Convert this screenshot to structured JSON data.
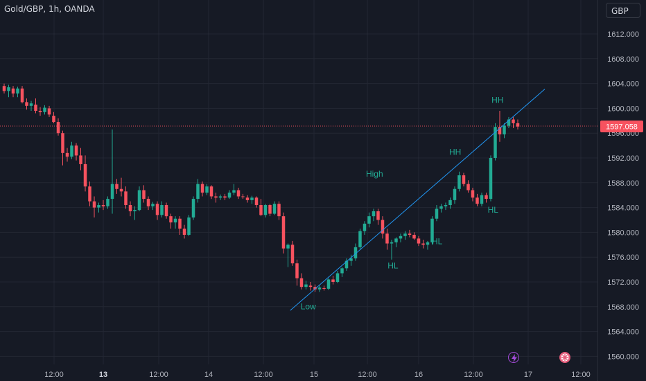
{
  "header": {
    "symbol": "Gold/GBP, 1h, OANDA",
    "currency_button": "GBP"
  },
  "price_axis": {
    "ticks": [
      "1612.000",
      "1608.000",
      "1604.000",
      "1600.000",
      "1596.000",
      "1592.000",
      "1588.000",
      "1584.000",
      "1580.000",
      "1576.000",
      "1572.000",
      "1568.000",
      "1564.000",
      "1560.000"
    ]
  },
  "time_axis": {
    "labels": [
      "12:00",
      "13",
      "12:00",
      "14",
      "12:00",
      "15",
      "12:00",
      "16",
      "12:00",
      "17",
      "12:00"
    ],
    "bold_labels": [
      "13"
    ]
  },
  "last_price": {
    "label": "1597.058",
    "value": 1597.058,
    "color": "#f7525f"
  },
  "colors": {
    "up": "#22ab94",
    "down": "#f7525f",
    "trendline": "#2196f3",
    "annotation": "#22ab94",
    "background": "#161a25",
    "grid": "#232733",
    "axis_text": "#b2b5be"
  },
  "annotations": [
    "Low",
    "High",
    "HL",
    "HL",
    "HH",
    "HH",
    "HL"
  ],
  "events": [
    {
      "icon": "lightning-icon",
      "color": "#a54bdb"
    },
    {
      "icon": "flag-icon",
      "color": "#e55b7a"
    }
  ],
  "chart_data": {
    "type": "candlestick",
    "instrument": "Gold/GBP",
    "timeframe": "1h",
    "source": "OANDA",
    "ylim": [
      1558.8,
      1618.2
    ],
    "y_ticks": [
      1560,
      1564,
      1568,
      1572,
      1576,
      1580,
      1584,
      1588,
      1592,
      1596,
      1600,
      1604,
      1608,
      1612
    ],
    "x_tick_labels": [
      "12:00",
      "13",
      "12:00",
      "14",
      "12:00",
      "15",
      "12:00",
      "16",
      "12:00",
      "17",
      "12:00"
    ],
    "ohlc": [
      [
        1603.6,
        1604.0,
        1602.4,
        1602.8
      ],
      [
        1602.8,
        1603.8,
        1601.8,
        1603.4
      ],
      [
        1603.2,
        1603.6,
        1601.8,
        1602.4
      ],
      [
        1602.4,
        1603.5,
        1601.8,
        1603.2
      ],
      [
        1603.2,
        1603.6,
        1600.8,
        1601.0
      ],
      [
        1601.0,
        1601.6,
        1599.8,
        1600.4
      ],
      [
        1600.4,
        1601.2,
        1599.6,
        1600.8
      ],
      [
        1600.6,
        1601.6,
        1599.2,
        1599.6
      ],
      [
        1599.6,
        1600.2,
        1598.8,
        1599.4
      ],
      [
        1599.4,
        1600.5,
        1599.0,
        1600.1
      ],
      [
        1600.0,
        1600.4,
        1598.6,
        1599.0
      ],
      [
        1598.8,
        1599.4,
        1597.6,
        1597.8
      ],
      [
        1597.8,
        1598.4,
        1595.6,
        1596.0
      ],
      [
        1596.0,
        1596.4,
        1590.8,
        1592.8
      ],
      [
        1592.8,
        1593.6,
        1591.4,
        1592.2
      ],
      [
        1592.2,
        1594.6,
        1591.8,
        1594.0
      ],
      [
        1594.0,
        1594.4,
        1591.6,
        1592.4
      ],
      [
        1592.4,
        1593.6,
        1590.0,
        1591.0
      ],
      [
        1591.0,
        1592.4,
        1586.6,
        1587.4
      ],
      [
        1587.4,
        1588.2,
        1584.2,
        1585.0
      ],
      [
        1585.0,
        1585.8,
        1582.4,
        1584.0
      ],
      [
        1584.0,
        1584.8,
        1583.2,
        1584.4
      ],
      [
        1584.4,
        1585.2,
        1583.6,
        1584.2
      ],
      [
        1584.2,
        1585.8,
        1583.8,
        1585.4
      ],
      [
        1585.4,
        1596.6,
        1583.0,
        1587.8
      ],
      [
        1587.8,
        1588.6,
        1586.2,
        1587.0
      ],
      [
        1587.0,
        1588.8,
        1585.8,
        1586.6
      ],
      [
        1586.6,
        1587.4,
        1583.8,
        1584.4
      ],
      [
        1584.4,
        1585.0,
        1582.6,
        1583.4
      ],
      [
        1583.4,
        1584.2,
        1582.0,
        1583.6
      ],
      [
        1583.6,
        1587.4,
        1583.4,
        1586.8
      ],
      [
        1586.8,
        1587.6,
        1584.8,
        1585.4
      ],
      [
        1585.4,
        1585.8,
        1583.6,
        1584.2
      ],
      [
        1584.2,
        1584.9,
        1583.6,
        1584.6
      ],
      [
        1584.6,
        1585.0,
        1582.0,
        1582.8
      ],
      [
        1582.8,
        1585.0,
        1582.4,
        1584.4
      ],
      [
        1584.4,
        1584.8,
        1582.2,
        1582.6
      ],
      [
        1582.6,
        1583.0,
        1580.6,
        1581.6
      ],
      [
        1581.6,
        1582.6,
        1580.6,
        1582.2
      ],
      [
        1582.2,
        1582.6,
        1579.6,
        1580.6
      ],
      [
        1580.6,
        1581.2,
        1579.0,
        1579.6
      ],
      [
        1579.6,
        1582.8,
        1579.4,
        1582.4
      ],
      [
        1582.4,
        1585.8,
        1582.0,
        1585.4
      ],
      [
        1585.4,
        1588.6,
        1584.8,
        1587.8
      ],
      [
        1587.8,
        1588.2,
        1585.8,
        1586.4
      ],
      [
        1586.4,
        1587.8,
        1586.0,
        1587.4
      ],
      [
        1587.4,
        1587.6,
        1585.4,
        1585.8
      ],
      [
        1585.8,
        1586.4,
        1584.8,
        1585.6
      ],
      [
        1585.6,
        1586.1,
        1585.2,
        1585.8
      ],
      [
        1585.8,
        1586.2,
        1585.2,
        1585.6
      ],
      [
        1585.6,
        1586.8,
        1585.4,
        1586.4
      ],
      [
        1586.4,
        1587.8,
        1586.0,
        1586.8
      ],
      [
        1586.8,
        1587.2,
        1585.4,
        1585.8
      ],
      [
        1585.8,
        1586.2,
        1585.4,
        1585.7
      ],
      [
        1585.6,
        1586.0,
        1584.8,
        1585.2
      ],
      [
        1585.2,
        1585.9,
        1584.6,
        1585.6
      ],
      [
        1585.6,
        1585.8,
        1584.0,
        1584.4
      ],
      [
        1584.4,
        1585.4,
        1582.6,
        1582.8
      ],
      [
        1582.8,
        1584.6,
        1582.4,
        1584.4
      ],
      [
        1584.4,
        1584.6,
        1582.6,
        1583.0
      ],
      [
        1583.0,
        1585.0,
        1582.8,
        1584.6
      ],
      [
        1584.6,
        1585.0,
        1582.0,
        1582.6
      ],
      [
        1582.6,
        1583.2,
        1576.6,
        1577.4
      ],
      [
        1577.4,
        1578.2,
        1574.4,
        1578.0
      ],
      [
        1578.0,
        1578.6,
        1574.6,
        1575.0
      ],
      [
        1575.0,
        1575.6,
        1571.4,
        1572.6
      ],
      [
        1572.6,
        1573.4,
        1570.8,
        1571.2
      ],
      [
        1571.2,
        1572.2,
        1570.8,
        1571.6
      ],
      [
        1571.4,
        1572.0,
        1570.6,
        1571.2
      ],
      [
        1571.2,
        1571.6,
        1570.4,
        1570.8
      ],
      [
        1570.8,
        1571.4,
        1570.4,
        1571.1
      ],
      [
        1571.0,
        1571.4,
        1570.6,
        1570.9
      ],
      [
        1570.9,
        1572.6,
        1570.7,
        1572.4
      ],
      [
        1572.4,
        1573.0,
        1571.6,
        1572.0
      ],
      [
        1572.0,
        1573.8,
        1571.8,
        1573.4
      ],
      [
        1573.4,
        1574.4,
        1572.8,
        1574.2
      ],
      [
        1574.2,
        1575.8,
        1573.8,
        1575.4
      ],
      [
        1575.4,
        1576.4,
        1574.6,
        1575.8
      ],
      [
        1575.8,
        1578.2,
        1575.4,
        1577.6
      ],
      [
        1577.6,
        1580.6,
        1577.2,
        1580.2
      ],
      [
        1580.2,
        1581.8,
        1579.6,
        1581.4
      ],
      [
        1581.4,
        1583.2,
        1580.8,
        1582.6
      ],
      [
        1582.6,
        1583.8,
        1581.8,
        1583.4
      ],
      [
        1583.4,
        1583.8,
        1581.2,
        1582.0
      ],
      [
        1582.0,
        1582.6,
        1579.0,
        1579.8
      ],
      [
        1579.8,
        1580.6,
        1577.2,
        1578.2
      ],
      [
        1578.2,
        1578.8,
        1575.6,
        1578.4
      ],
      [
        1578.4,
        1579.2,
        1577.6,
        1579.0
      ],
      [
        1579.0,
        1579.8,
        1578.4,
        1579.4
      ],
      [
        1579.4,
        1580.2,
        1578.8,
        1579.8
      ],
      [
        1579.8,
        1580.4,
        1579.2,
        1579.6
      ],
      [
        1579.6,
        1580.0,
        1578.8,
        1579.0
      ],
      [
        1579.0,
        1579.4,
        1577.8,
        1578.2
      ],
      [
        1578.2,
        1578.8,
        1577.4,
        1578.0
      ],
      [
        1578.0,
        1578.6,
        1577.2,
        1578.4
      ],
      [
        1578.4,
        1582.6,
        1578.0,
        1582.2
      ],
      [
        1582.2,
        1584.4,
        1581.8,
        1583.8
      ],
      [
        1583.8,
        1584.6,
        1583.2,
        1584.2
      ],
      [
        1584.2,
        1584.8,
        1583.6,
        1584.4
      ],
      [
        1584.4,
        1585.6,
        1583.8,
        1585.2
      ],
      [
        1585.2,
        1587.4,
        1584.6,
        1587.0
      ],
      [
        1587.0,
        1589.8,
        1586.6,
        1589.2
      ],
      [
        1589.2,
        1589.6,
        1587.4,
        1587.8
      ],
      [
        1587.8,
        1588.4,
        1586.4,
        1586.8
      ],
      [
        1586.8,
        1587.2,
        1585.0,
        1585.6
      ],
      [
        1585.6,
        1586.2,
        1584.2,
        1584.6
      ],
      [
        1584.6,
        1586.4,
        1584.2,
        1586.0
      ],
      [
        1586.0,
        1586.4,
        1584.8,
        1585.4
      ],
      [
        1585.4,
        1592.4,
        1585.0,
        1592.0
      ],
      [
        1592.0,
        1597.6,
        1591.6,
        1597.0
      ],
      [
        1597.0,
        1599.6,
        1594.6,
        1595.8
      ],
      [
        1595.8,
        1597.6,
        1595.2,
        1597.2
      ],
      [
        1597.2,
        1598.6,
        1596.8,
        1598.2
      ],
      [
        1598.2,
        1598.6,
        1596.8,
        1597.6
      ],
      [
        1597.6,
        1598.2,
        1596.6,
        1597.058
      ]
    ],
    "trendline": {
      "start": {
        "candle_index": 63.5,
        "price": 1567.4
      },
      "end": {
        "candle_index": 120,
        "price": 1603.1
      }
    },
    "labels": [
      {
        "text": "Low",
        "candle_index": 67.5,
        "price": 1567.6
      },
      {
        "text": "High",
        "candle_index": 82.2,
        "price": 1589.0
      },
      {
        "text": "HL",
        "candle_index": 86.3,
        "price": 1574.2
      },
      {
        "text": "HL",
        "candle_index": 96.1,
        "price": 1578.1
      },
      {
        "text": "HH",
        "candle_index": 100.1,
        "price": 1592.5
      },
      {
        "text": "HH",
        "candle_index": 109.5,
        "price": 1600.9
      },
      {
        "text": "HL",
        "candle_index": 108.5,
        "price": 1583.2
      }
    ]
  }
}
